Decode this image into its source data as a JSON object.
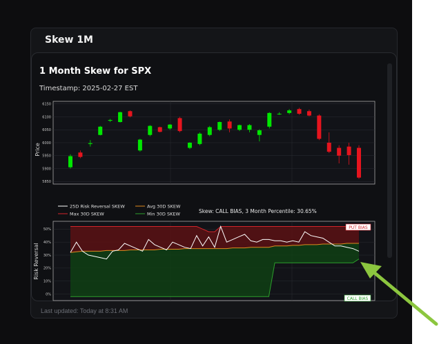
{
  "card": {
    "title": "Skew 1M",
    "last_updated": "Last updated: Today at 8:31 AM"
  },
  "chart": {
    "title": "1 Month Skew for SPX",
    "timestamp": "Timestamp: 2025-02-27 EST"
  },
  "colors": {
    "up": "#00e600",
    "down": "#e6141e",
    "rr": "#ffffff",
    "avg": "#e08a1e",
    "max": "#d4252b",
    "min": "#2ca02c",
    "arrow": "#8cc63f"
  },
  "chart_data": [
    {
      "type": "candlestick",
      "ylabel": "Price",
      "ylim": [
        5840,
        6160
      ],
      "yticks": [
        5850,
        5900,
        5950,
        6000,
        6050,
        6100,
        6150
      ],
      "candles": [
        {
          "o": 5905,
          "h": 5955,
          "l": 5900,
          "c": 5948
        },
        {
          "o": 5962,
          "h": 5970,
          "l": 5940,
          "c": 5945
        },
        {
          "o": 5995,
          "h": 6010,
          "l": 5985,
          "c": 5998
        },
        {
          "o": 6030,
          "h": 6065,
          "l": 6028,
          "c": 6062
        },
        {
          "o": 6085,
          "h": 6092,
          "l": 6080,
          "c": 6088
        },
        {
          "o": 6080,
          "h": 6120,
          "l": 6078,
          "c": 6118
        },
        {
          "o": 6122,
          "h": 6125,
          "l": 6098,
          "c": 6102
        },
        {
          "o": 5970,
          "h": 6015,
          "l": 5965,
          "c": 6012
        },
        {
          "o": 6030,
          "h": 6068,
          "l": 6025,
          "c": 6065
        },
        {
          "o": 6060,
          "h": 6062,
          "l": 6040,
          "c": 6042
        },
        {
          "o": 6055,
          "h": 6072,
          "l": 6050,
          "c": 6070
        },
        {
          "o": 6095,
          "h": 6100,
          "l": 6040,
          "c": 6045
        },
        {
          "o": 5980,
          "h": 6002,
          "l": 5975,
          "c": 6000
        },
        {
          "o": 5995,
          "h": 6040,
          "l": 5990,
          "c": 6035
        },
        {
          "o": 6030,
          "h": 6065,
          "l": 6025,
          "c": 6060
        },
        {
          "o": 6050,
          "h": 6082,
          "l": 6045,
          "c": 6080
        },
        {
          "o": 6082,
          "h": 6090,
          "l": 6040,
          "c": 6055
        },
        {
          "o": 6050,
          "h": 6070,
          "l": 6045,
          "c": 6068
        },
        {
          "o": 6050,
          "h": 6072,
          "l": 6040,
          "c": 6068
        },
        {
          "o": 6030,
          "h": 6052,
          "l": 6005,
          "c": 6048
        },
        {
          "o": 6062,
          "h": 6118,
          "l": 6055,
          "c": 6115
        },
        {
          "o": 6112,
          "h": 6118,
          "l": 6108,
          "c": 6112
        },
        {
          "o": 6115,
          "h": 6130,
          "l": 6110,
          "c": 6125
        },
        {
          "o": 6130,
          "h": 6135,
          "l": 6108,
          "c": 6112
        },
        {
          "o": 6122,
          "h": 6128,
          "l": 6102,
          "c": 6105
        },
        {
          "o": 6105,
          "h": 6110,
          "l": 6010,
          "c": 6015
        },
        {
          "o": 6000,
          "h": 6040,
          "l": 5960,
          "c": 5965
        },
        {
          "o": 5980,
          "h": 5990,
          "l": 5920,
          "c": 5950
        },
        {
          "o": 5985,
          "h": 6000,
          "l": 5915,
          "c": 5952
        },
        {
          "o": 5980,
          "h": 5990,
          "l": 5860,
          "c": 5865
        }
      ]
    },
    {
      "type": "line",
      "ylabel": "Risk Reversal",
      "ylim": [
        -5,
        56
      ],
      "yticks": [
        0,
        10,
        20,
        30,
        40,
        50
      ],
      "ytick_labels": [
        "0%",
        "10%",
        "20%",
        "30%",
        "40%",
        "50%"
      ],
      "legend": [
        "25D Risk Reversal SKEW",
        "Max 30D SKEW",
        "Avg 30D SKEW",
        "Min 30D SKEW"
      ],
      "annotation": "Skew: CALL BIAS, 3 Month Percentile: 30.65%",
      "badges": {
        "top": "PUT BIAS",
        "bottom": "CALL BIAS"
      },
      "series": [
        {
          "name": "25D Risk Reversal SKEW",
          "values": [
            32,
            40,
            33,
            30,
            29,
            28,
            27,
            33,
            34,
            39,
            37,
            35,
            33,
            42,
            38,
            36,
            34,
            40,
            38,
            36,
            35,
            45,
            37,
            44,
            36,
            52,
            40,
            42,
            44,
            46,
            41,
            40,
            42,
            42,
            41,
            41,
            40,
            41,
            40,
            48,
            45,
            44,
            43,
            40,
            37,
            37,
            36,
            35,
            33
          ]
        },
        {
          "name": "Max 30D SKEW",
          "values": [
            52,
            52,
            52,
            52,
            52,
            52,
            52,
            52,
            52,
            52,
            52,
            52,
            52,
            52,
            52,
            52,
            52,
            52,
            52,
            52,
            52,
            52,
            50,
            48,
            48,
            52,
            52,
            52,
            52,
            52,
            52,
            52,
            52,
            52,
            52,
            52,
            52,
            52,
            52,
            52,
            52,
            52,
            52,
            52,
            52,
            52,
            52,
            52,
            52
          ]
        },
        {
          "name": "Avg 30D SKEW",
          "values": [
            32,
            32.5,
            33,
            33,
            33,
            33,
            33.5,
            33.5,
            33.5,
            33.5,
            34,
            34,
            34,
            34,
            34,
            34.5,
            34.5,
            34.5,
            34.5,
            35,
            35,
            35,
            35,
            35,
            35,
            35,
            35,
            35.5,
            35.5,
            35.5,
            36,
            36,
            36,
            36,
            37,
            37,
            37,
            37.5,
            37.5,
            38,
            38,
            38,
            38.5,
            38.5,
            38.5,
            38.5,
            39,
            39,
            39
          ]
        },
        {
          "name": "Min 30D SKEW",
          "values": [
            -2,
            -2,
            -2,
            -2,
            -2,
            -2,
            -2,
            -2,
            -2,
            -2,
            -2,
            -2,
            -2,
            -2,
            -2,
            -2,
            -2,
            -2,
            -2,
            -2,
            -2,
            -2,
            -2,
            -2,
            -2,
            -2,
            -2,
            -2,
            -2,
            -2,
            -2,
            -2,
            -2,
            -2,
            24,
            24,
            24,
            24,
            24,
            24,
            24,
            24,
            24,
            24,
            24,
            24,
            24,
            24,
            27
          ]
        }
      ]
    }
  ]
}
